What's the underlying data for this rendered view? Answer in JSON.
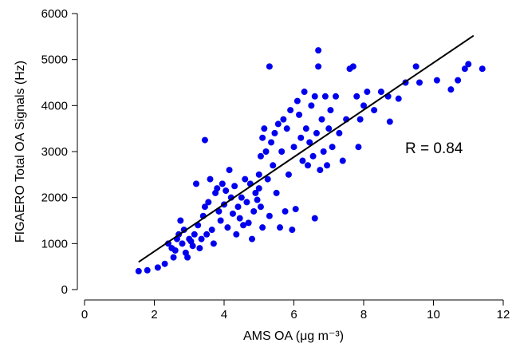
{
  "chart_data": {
    "type": "scatter",
    "xlabel": "AMS OA (μg m⁻³)",
    "ylabel": "FIGAERO Total OA Signals (Hz)",
    "xlim": [
      0,
      12
    ],
    "ylim": [
      0,
      6000
    ],
    "xticks": [
      0,
      2,
      4,
      6,
      8,
      10,
      12
    ],
    "yticks": [
      0,
      1000,
      2000,
      3000,
      4000,
      5000,
      6000
    ],
    "grid": false,
    "legend": "none",
    "marker_color": "#0000ee",
    "annotation": "R = 0.84",
    "fit_line": {
      "x": [
        1.55,
        11.15
      ],
      "y": [
        600,
        5520
      ]
    },
    "series": [
      {
        "points": [
          [
            1.55,
            400
          ],
          [
            1.8,
            420
          ],
          [
            2.1,
            480
          ],
          [
            2.3,
            560
          ],
          [
            2.4,
            1000
          ],
          [
            2.5,
            900
          ],
          [
            2.55,
            700
          ],
          [
            2.6,
            850
          ],
          [
            2.65,
            1100
          ],
          [
            2.7,
            1200
          ],
          [
            2.75,
            1500
          ],
          [
            2.8,
            1000
          ],
          [
            2.85,
            1300
          ],
          [
            2.9,
            800
          ],
          [
            2.95,
            700
          ],
          [
            3.0,
            1100
          ],
          [
            3.05,
            1050
          ],
          [
            3.1,
            950
          ],
          [
            3.15,
            1200
          ],
          [
            3.2,
            2300
          ],
          [
            3.25,
            1400
          ],
          [
            3.3,
            900
          ],
          [
            3.35,
            1100
          ],
          [
            3.4,
            1600
          ],
          [
            3.45,
            1800
          ],
          [
            3.45,
            3250
          ],
          [
            3.5,
            1200
          ],
          [
            3.55,
            1900
          ],
          [
            3.6,
            2400
          ],
          [
            3.65,
            1300
          ],
          [
            3.7,
            1000
          ],
          [
            3.75,
            2100
          ],
          [
            3.8,
            2200
          ],
          [
            3.85,
            1700
          ],
          [
            3.9,
            1500
          ],
          [
            3.95,
            2300
          ],
          [
            4.0,
            1850
          ],
          [
            4.05,
            2150
          ],
          [
            4.1,
            1350
          ],
          [
            4.15,
            2600
          ],
          [
            4.2,
            2000
          ],
          [
            4.25,
            1650
          ],
          [
            4.3,
            2250
          ],
          [
            4.35,
            1200
          ],
          [
            4.4,
            1800
          ],
          [
            4.45,
            1550
          ],
          [
            4.5,
            2000
          ],
          [
            4.55,
            1400
          ],
          [
            4.6,
            2400
          ],
          [
            4.65,
            1900
          ],
          [
            4.7,
            1450
          ],
          [
            4.75,
            2300
          ],
          [
            4.8,
            1100
          ],
          [
            4.85,
            1700
          ],
          [
            4.9,
            2100
          ],
          [
            4.95,
            1950
          ],
          [
            5.0,
            2500
          ],
          [
            5.0,
            2200
          ],
          [
            5.05,
            2900
          ],
          [
            5.05,
            1800
          ],
          [
            5.1,
            3300
          ],
          [
            5.1,
            1350
          ],
          [
            5.15,
            3500
          ],
          [
            5.2,
            3000
          ],
          [
            5.25,
            2400
          ],
          [
            5.3,
            4850
          ],
          [
            5.3,
            1600
          ],
          [
            5.35,
            3200
          ],
          [
            5.4,
            2700
          ],
          [
            5.45,
            3400
          ],
          [
            5.5,
            2100
          ],
          [
            5.55,
            3600
          ],
          [
            5.6,
            1350
          ],
          [
            5.65,
            3000
          ],
          [
            5.7,
            3700
          ],
          [
            5.75,
            1700
          ],
          [
            5.8,
            3500
          ],
          [
            5.85,
            2500
          ],
          [
            5.9,
            3900
          ],
          [
            5.95,
            1300
          ],
          [
            6.0,
            3100
          ],
          [
            6.05,
            1750
          ],
          [
            6.1,
            4100
          ],
          [
            6.15,
            3800
          ],
          [
            6.2,
            3300
          ],
          [
            6.25,
            2800
          ],
          [
            6.3,
            4300
          ],
          [
            6.35,
            3500
          ],
          [
            6.4,
            2700
          ],
          [
            6.45,
            3200
          ],
          [
            6.5,
            4000
          ],
          [
            6.55,
            2900
          ],
          [
            6.6,
            4200
          ],
          [
            6.6,
            1550
          ],
          [
            6.65,
            3400
          ],
          [
            6.7,
            5200
          ],
          [
            6.7,
            4850
          ],
          [
            6.75,
            2600
          ],
          [
            6.8,
            3700
          ],
          [
            6.85,
            3000
          ],
          [
            6.9,
            4200
          ],
          [
            6.95,
            2700
          ],
          [
            7.0,
            3500
          ],
          [
            7.05,
            3900
          ],
          [
            7.1,
            3100
          ],
          [
            7.2,
            4200
          ],
          [
            7.3,
            3400
          ],
          [
            7.4,
            2800
          ],
          [
            7.5,
            3700
          ],
          [
            7.6,
            4800
          ],
          [
            7.7,
            4850
          ],
          [
            7.8,
            4200
          ],
          [
            7.85,
            3100
          ],
          [
            7.9,
            3700
          ],
          [
            8.0,
            4000
          ],
          [
            8.1,
            4300
          ],
          [
            8.3,
            3900
          ],
          [
            8.5,
            4300
          ],
          [
            8.7,
            4200
          ],
          [
            8.75,
            3650
          ],
          [
            9.0,
            4150
          ],
          [
            9.2,
            4500
          ],
          [
            9.5,
            4850
          ],
          [
            9.6,
            4500
          ],
          [
            10.1,
            4550
          ],
          [
            10.5,
            4350
          ],
          [
            10.7,
            4550
          ],
          [
            10.9,
            4800
          ],
          [
            11.0,
            4900
          ],
          [
            11.4,
            4800
          ]
        ]
      }
    ]
  }
}
